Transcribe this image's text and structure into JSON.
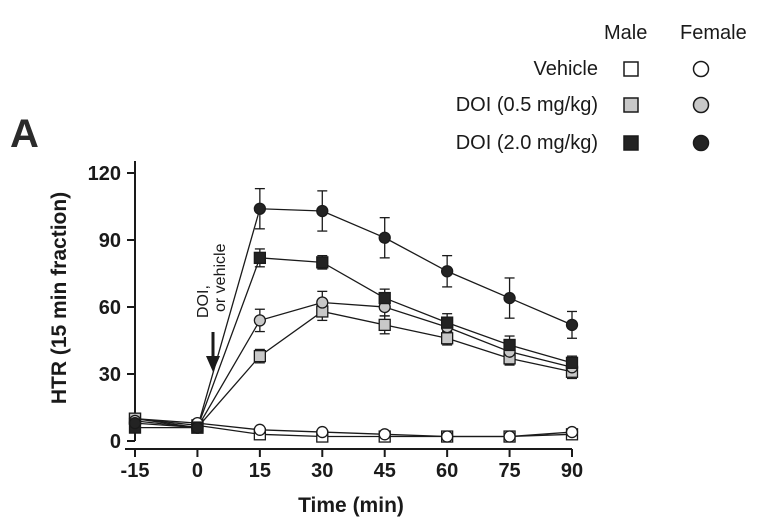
{
  "panel_label": "A",
  "legend": {
    "column_headers": [
      "Male",
      "Female"
    ],
    "rows": [
      {
        "label": "Vehicle",
        "fill": "#ffffff"
      },
      {
        "label": "DOI (0.5 mg/kg)",
        "fill": "#c8c8c8"
      },
      {
        "label": "DOI (2.0 mg/kg)",
        "fill": "#232323"
      }
    ]
  },
  "annotation": {
    "line1": "DOI,",
    "line2": "or vehicle"
  },
  "chart_data": {
    "type": "line",
    "xlabel": "Time (min)",
    "ylabel": "HTR (15 min fraction)",
    "x": [
      -15,
      0,
      15,
      30,
      45,
      60,
      75,
      90
    ],
    "x_ticks": [
      -15,
      0,
      15,
      30,
      45,
      60,
      75,
      90
    ],
    "y_ticks": [
      0,
      30,
      60,
      90,
      120
    ],
    "xlim": [
      -15,
      90
    ],
    "ylim": [
      0,
      120
    ],
    "grid": false,
    "series": [
      {
        "name": "Vehicle",
        "sex": "Male",
        "marker": "square",
        "fill": "#ffffff",
        "values": [
          10,
          7,
          3,
          2,
          2,
          2,
          2,
          3
        ],
        "errors": [
          2,
          1,
          1,
          1,
          1,
          1,
          1,
          1
        ]
      },
      {
        "name": "Vehicle",
        "sex": "Female",
        "marker": "circle",
        "fill": "#ffffff",
        "values": [
          10,
          8,
          5,
          4,
          3,
          2,
          2,
          4
        ],
        "errors": [
          2,
          1,
          1,
          1,
          1,
          1,
          1,
          1
        ]
      },
      {
        "name": "DOI (0.5 mg/kg)",
        "sex": "Male",
        "marker": "square",
        "fill": "#c8c8c8",
        "values": [
          10,
          6,
          38,
          58,
          52,
          46,
          37,
          31
        ],
        "errors": [
          2,
          1,
          3,
          4,
          4,
          3,
          3,
          3
        ]
      },
      {
        "name": "DOI (0.5 mg/kg)",
        "sex": "Female",
        "marker": "circle",
        "fill": "#c8c8c8",
        "values": [
          9,
          6,
          54,
          62,
          60,
          51,
          40,
          33
        ],
        "errors": [
          2,
          1,
          5,
          5,
          4,
          4,
          3,
          3
        ]
      },
      {
        "name": "DOI (2.0 mg/kg)",
        "sex": "Male",
        "marker": "square",
        "fill": "#232323",
        "values": [
          6,
          6,
          82,
          80,
          64,
          53,
          43,
          35
        ],
        "errors": [
          1,
          1,
          4,
          3,
          4,
          4,
          4,
          3
        ]
      },
      {
        "name": "DOI (2.0 mg/kg)",
        "sex": "Female",
        "marker": "circle",
        "fill": "#232323",
        "values": [
          8,
          6,
          104,
          103,
          91,
          76,
          64,
          52
        ],
        "errors": [
          2,
          1,
          9,
          9,
          9,
          7,
          9,
          6
        ]
      }
    ]
  }
}
